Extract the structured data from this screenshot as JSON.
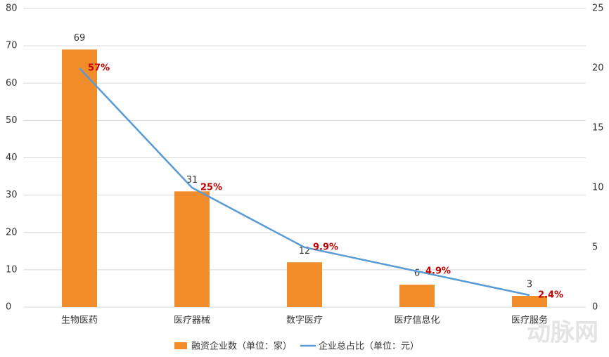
{
  "chart_data": {
    "type": "bar-line",
    "categories": [
      "生物医药",
      "医疗器械",
      "数字医疗",
      "医疗信息化",
      "医疗服务"
    ],
    "series": [
      {
        "name": "融资企业数（单位：家）",
        "type": "bar",
        "color": "#f08c2a",
        "values": [
          69,
          31,
          12,
          6,
          3
        ]
      },
      {
        "name": "企业总占比（单位：元）",
        "type": "line",
        "axis": "y2",
        "color": "#5b9bd5",
        "values": [
          20,
          10,
          5,
          3,
          1
        ],
        "point_labels": [
          "57%",
          "25%",
          "9.9%",
          "4.9%",
          "2.4%"
        ],
        "point_label_color": "#c00000"
      }
    ],
    "ylim": [
      0,
      80
    ],
    "yticks": [
      0,
      10,
      20,
      30,
      40,
      50,
      60,
      70,
      80
    ],
    "y2lim": [
      0,
      25
    ],
    "y2ticks": [
      0,
      5,
      10,
      15,
      20,
      25
    ],
    "grid": true,
    "legend": "bottom",
    "watermark": "动脉网"
  }
}
